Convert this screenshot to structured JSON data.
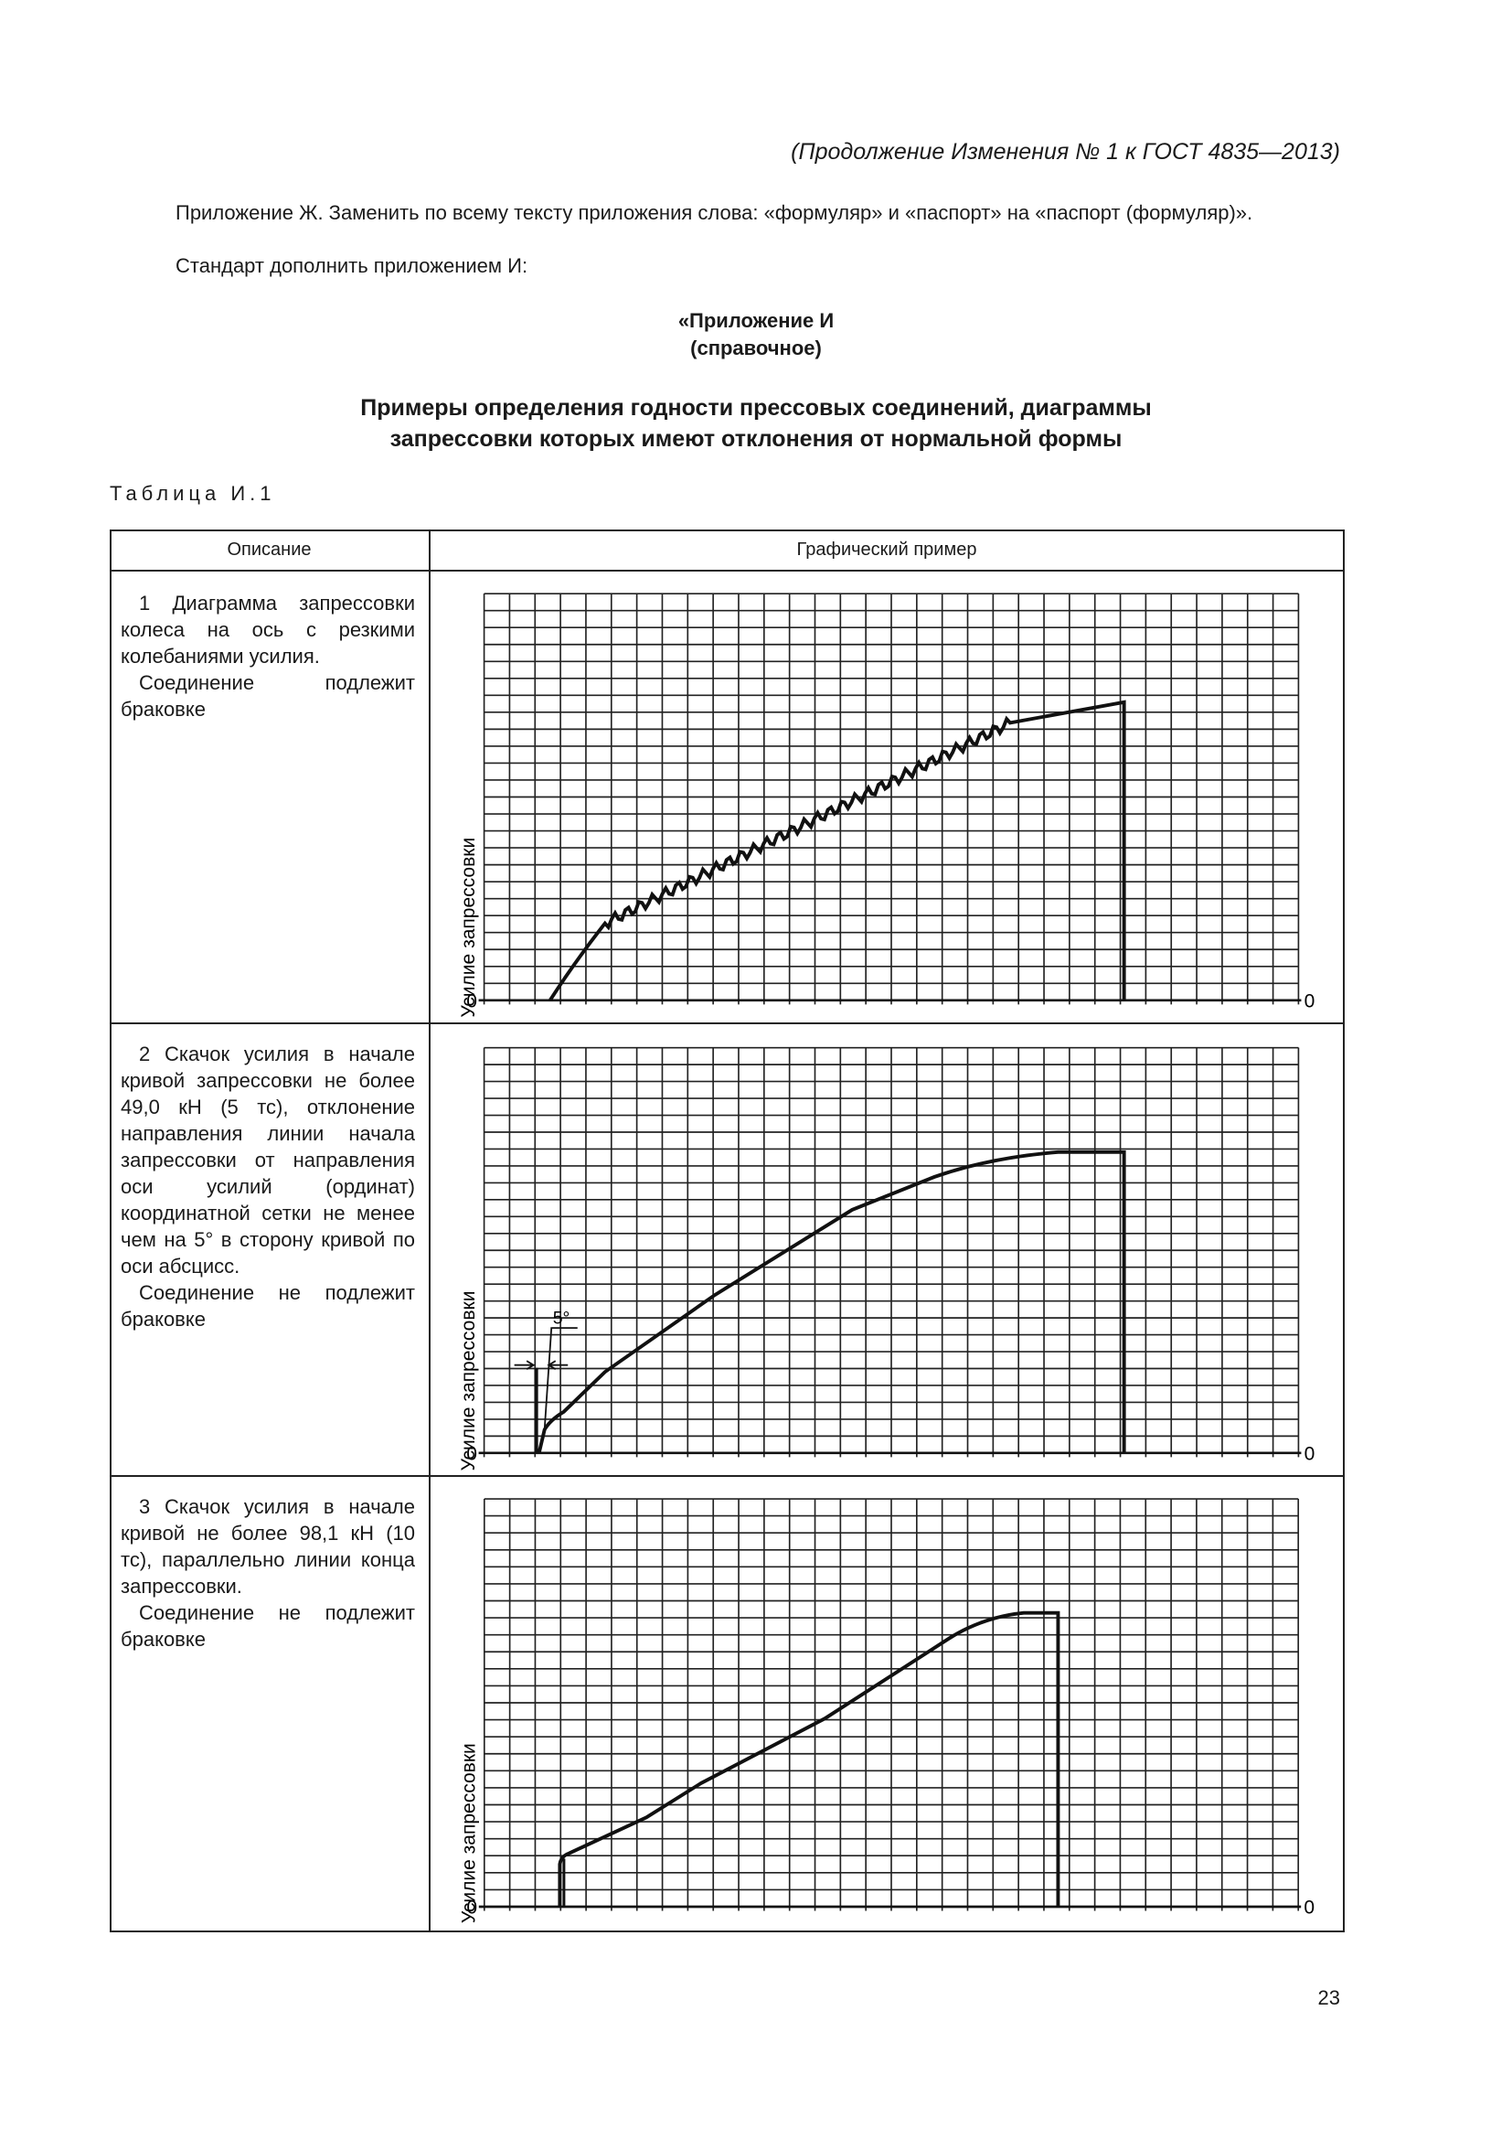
{
  "header": {
    "continuation": "(Продолжение Изменения № 1 к ГОСТ 4835—2013)"
  },
  "paragraphs": [
    "Приложение Ж. Заменить по всему тексту приложения слова: «формуляр» и «паспорт» на «паспорт (формуляр)».",
    "Стандарт дополнить приложением И:"
  ],
  "appendix": {
    "label": "«Приложение И",
    "kind": "(справочное)",
    "title": [
      "Примеры определения годности прессовых соединений, диаграммы",
      "запрессовки которых имеют отклонения от нормальной формы"
    ]
  },
  "table": {
    "caption": "Таблица И.1",
    "columns": [
      "Описание",
      "Графический пример"
    ],
    "rows": [
      {
        "description": [
          "1 Диаграмма запрессовки колеса на ось с резкими колебаниями усилия.",
          "Соединение подлежит браковке"
        ],
        "graph": {
          "y_label": "Усилие запрессовки",
          "origin_left": "0",
          "origin_right": "0"
        }
      },
      {
        "description": [
          "2 Скачок усилия в начале кривой запрессовки не более 49,0 кН (5 тс), отклонение направления линии начала запрессовки от направления оси усилий (ординат) координатной сетки не менее чем на 5° в сторону кривой по оси абсцисс.",
          "Соединение не подлежит браковке"
        ],
        "graph": {
          "y_label": "Усилие запрессовки",
          "origin_left": "0",
          "origin_right": "0",
          "angle": "5°"
        }
      },
      {
        "description": [
          "3 Скачок усилия в начале кривой не более 98,1 кН (10 тс), параллельно линии конца запрессовки.",
          "Соединение не подлежит браковке"
        ],
        "graph": {
          "y_label": "Усилие запрессовки",
          "origin_left": "0",
          "origin_right": "0"
        }
      }
    ]
  },
  "page_number": "23"
}
